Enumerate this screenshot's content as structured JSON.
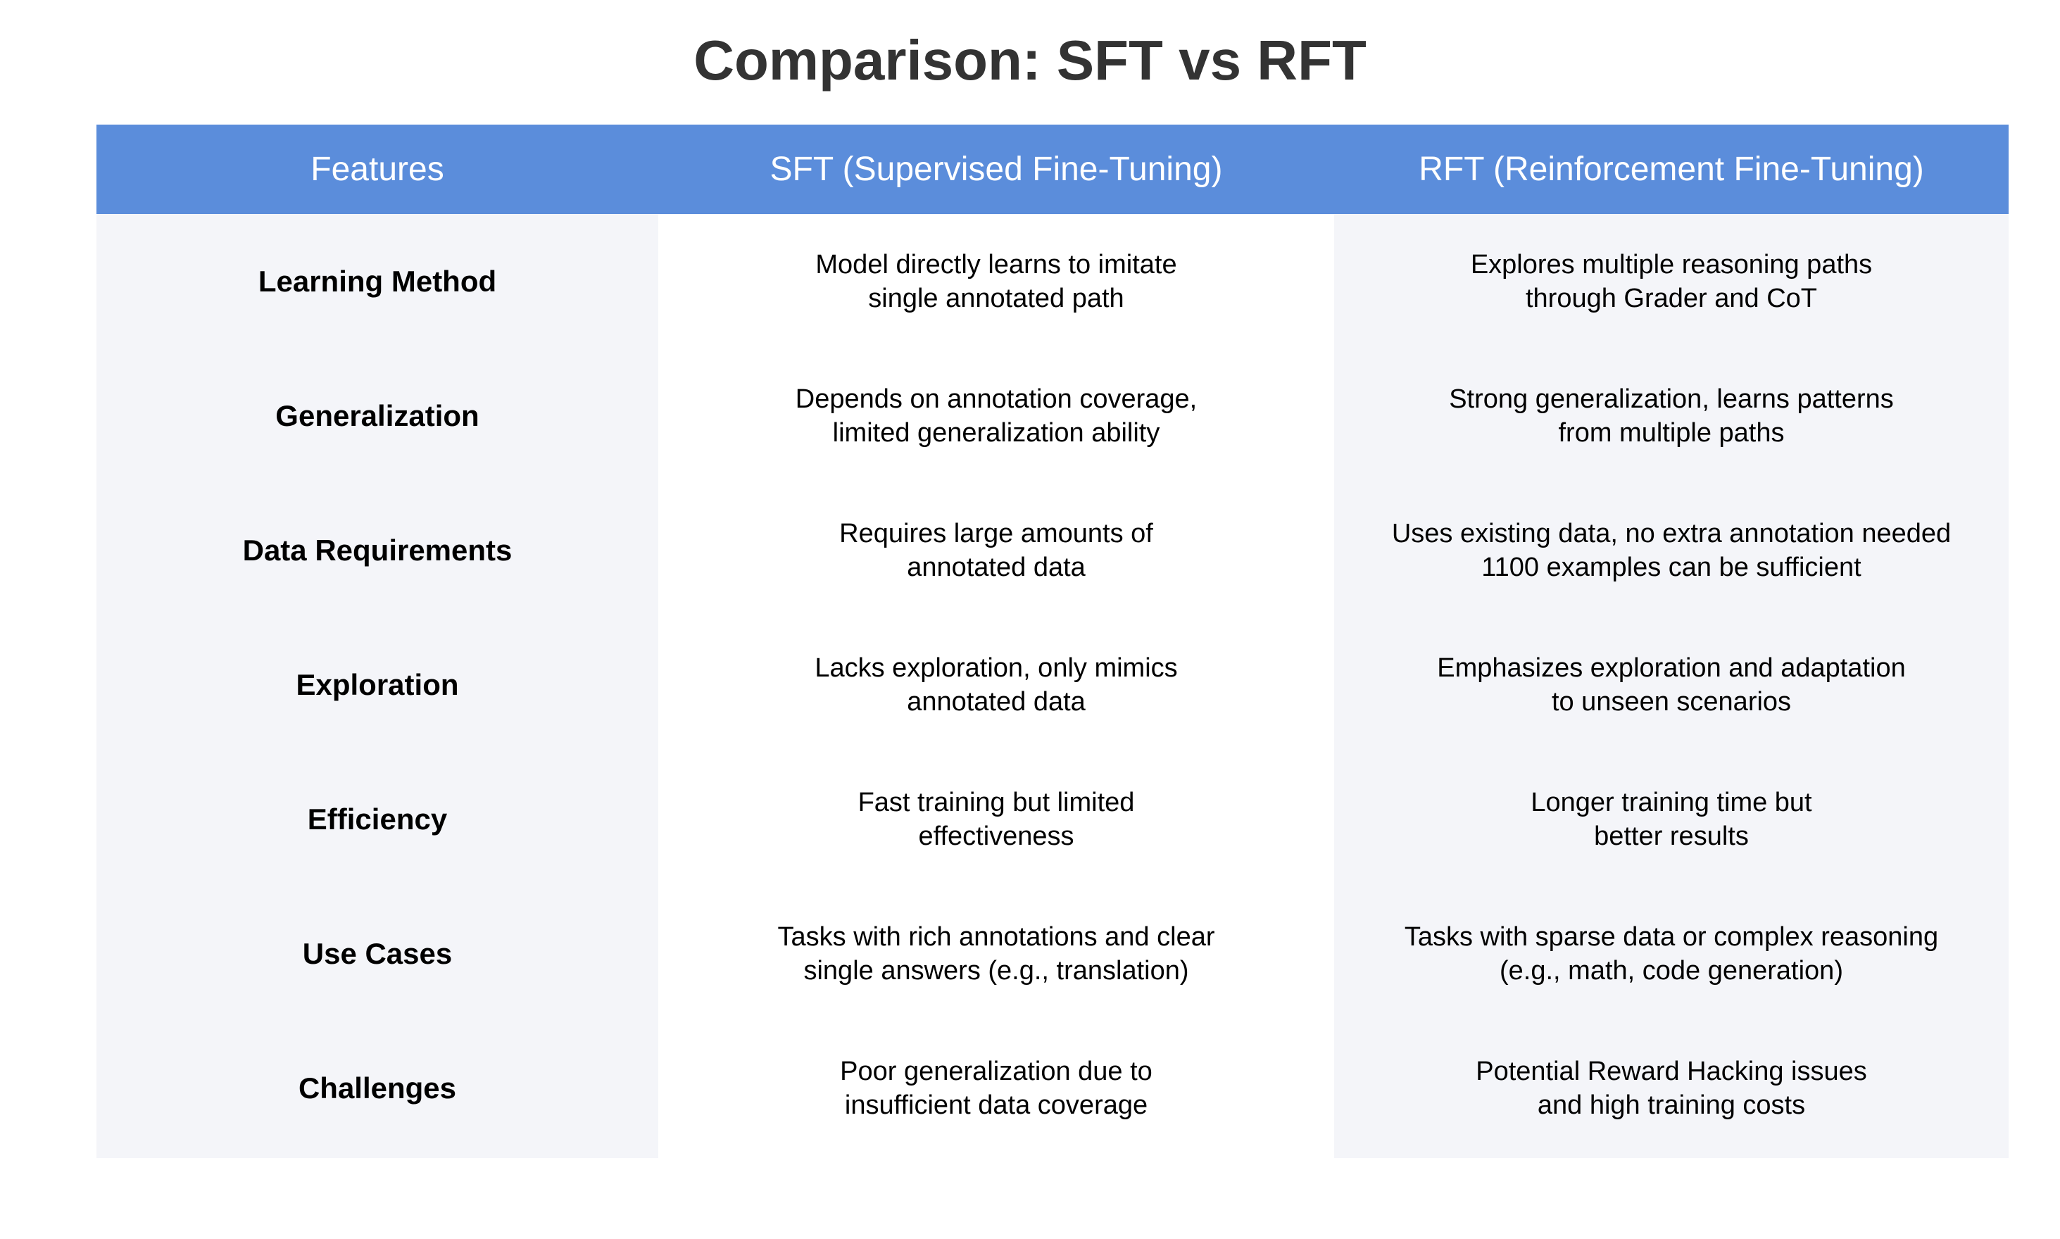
{
  "title": "Comparison: SFT vs RFT",
  "colors": {
    "title": "#333333",
    "header_bg": "#5b8ddb",
    "header_text": "#ffffff",
    "shaded_column_bg": "#f4f5f9",
    "white_column_bg": "#ffffff"
  },
  "headers": {
    "features": "Features",
    "sft": "SFT (Supervised Fine-Tuning)",
    "rft": "RFT (Reinforcement Fine-Tuning)"
  },
  "rows": [
    {
      "feature": "Learning Method",
      "sft": [
        "Model directly learns to imitate",
        "single annotated path"
      ],
      "rft": [
        "Explores multiple reasoning paths",
        "through Grader and CoT"
      ]
    },
    {
      "feature": "Generalization",
      "sft": [
        "Depends on annotation coverage,",
        "limited generalization ability"
      ],
      "rft": [
        "Strong generalization, learns patterns",
        "from multiple paths"
      ]
    },
    {
      "feature": "Data Requirements",
      "sft": [
        "Requires large amounts of",
        "annotated data"
      ],
      "rft": [
        "Uses existing data, no extra annotation needed",
        "1100 examples can be sufficient"
      ]
    },
    {
      "feature": "Exploration",
      "sft": [
        "Lacks exploration, only mimics",
        "annotated data"
      ],
      "rft": [
        "Emphasizes exploration and adaptation",
        "to unseen scenarios"
      ]
    },
    {
      "feature": "Efficiency",
      "sft": [
        "Fast training but limited",
        "effectiveness"
      ],
      "rft": [
        "Longer training time but",
        "better results"
      ]
    },
    {
      "feature": "Use Cases",
      "sft": [
        "Tasks with rich annotations and clear",
        "single answers (e.g., translation)"
      ],
      "rft": [
        "Tasks with sparse data or complex reasoning",
        "(e.g., math, code generation)"
      ]
    },
    {
      "feature": "Challenges",
      "sft": [
        "Poor generalization due to",
        "insufficient data coverage"
      ],
      "rft": [
        "Potential Reward Hacking issues",
        "and high training costs"
      ]
    }
  ]
}
